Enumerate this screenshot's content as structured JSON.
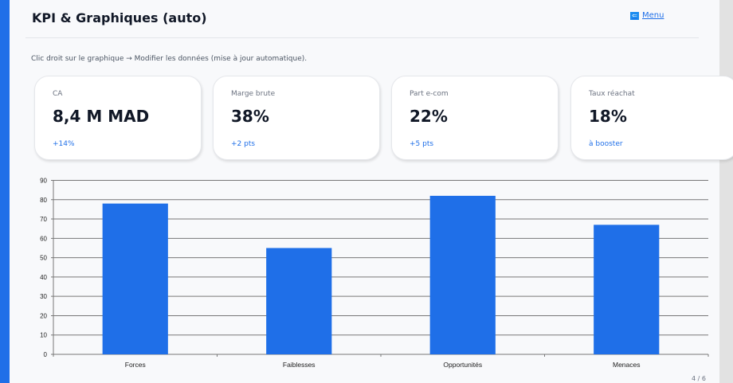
{
  "header": {
    "title": "KPI & Graphiques (auto)",
    "menu_label": "Menu",
    "menu_icon": "back-arrow-icon"
  },
  "hint": "Clic droit sur le graphique → Modifier les données (mise à jour automatique).",
  "kpis": [
    {
      "label": "CA",
      "value": "8,4 M MAD",
      "delta": "+14%"
    },
    {
      "label": "Marge brute",
      "value": "38%",
      "delta": "+2 pts"
    },
    {
      "label": "Part e-com",
      "value": "22%",
      "delta": "+5 pts"
    },
    {
      "label": "Taux réachat",
      "value": "18%",
      "delta": "à booster"
    }
  ],
  "colors": {
    "accent": "#1f6fe8",
    "bar": "#1f6fe8"
  },
  "chart_data": {
    "type": "bar",
    "title": "",
    "xlabel": "",
    "ylabel": "",
    "categories": [
      "Forces",
      "Faiblesses",
      "Opportunités",
      "Menaces"
    ],
    "values": [
      78,
      55,
      82,
      67
    ],
    "ylim": [
      0,
      90
    ],
    "yticks": [
      0,
      10,
      20,
      30,
      40,
      50,
      60,
      70,
      80,
      90
    ],
    "grid": true,
    "legend": "none"
  },
  "page_number": "4 / 6"
}
